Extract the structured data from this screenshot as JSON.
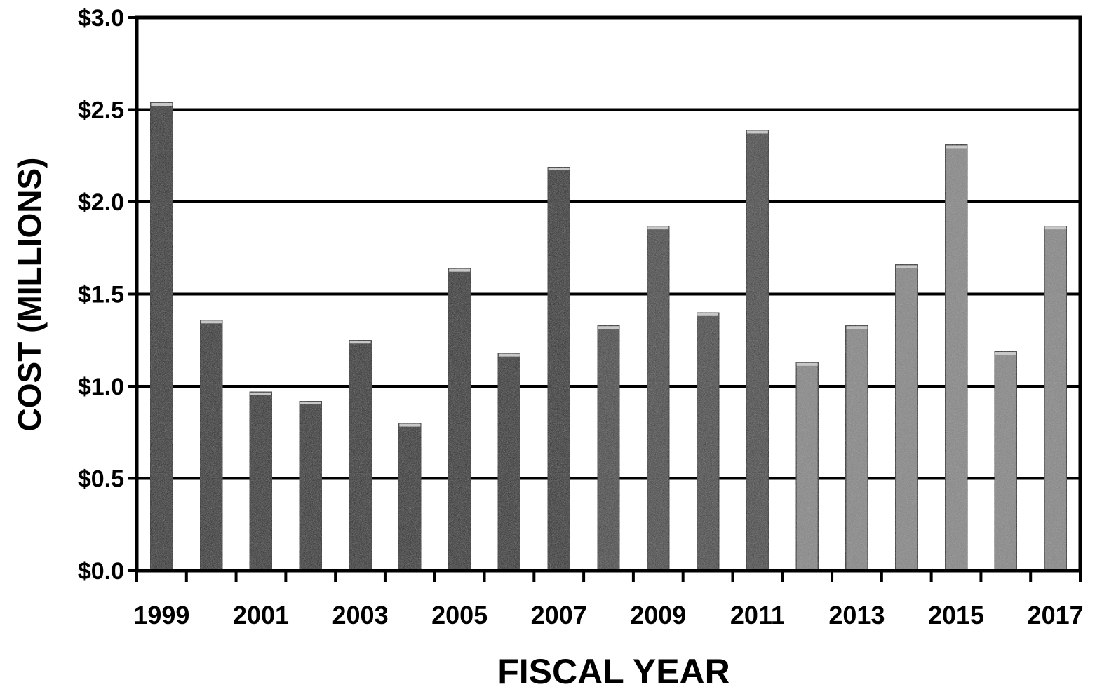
{
  "chart_data": {
    "type": "bar",
    "title": "",
    "xlabel": "FISCAL YEAR",
    "ylabel": "COST (MILLIONS)",
    "ylim": [
      0,
      3.0
    ],
    "y_ticks": [
      "$0.0",
      "$0.5",
      "$1.0",
      "$1.5",
      "$2.0",
      "$2.5",
      "$3.0"
    ],
    "y_tick_values": [
      0,
      0.5,
      1.0,
      1.5,
      2.0,
      2.5,
      3.0
    ],
    "categories": [
      "1999",
      "2000",
      "2001",
      "2002",
      "2003",
      "2004",
      "2005",
      "2006",
      "2007",
      "2008",
      "2009",
      "2010",
      "2011",
      "2012",
      "2013",
      "2014",
      "2015",
      "2016",
      "2017"
    ],
    "x_tick_labels": [
      "1999",
      "",
      "2001",
      "",
      "2003",
      "",
      "2005",
      "",
      "2007",
      "",
      "2009",
      "",
      "2011",
      "",
      "2013",
      "",
      "2015",
      "",
      "2017"
    ],
    "values": [
      2.54,
      1.36,
      0.97,
      0.92,
      1.25,
      0.8,
      1.64,
      1.18,
      2.19,
      1.33,
      1.87,
      1.4,
      2.39,
      1.13,
      1.33,
      1.66,
      2.31,
      1.19,
      1.87
    ],
    "grid": true,
    "legend": "none",
    "colors": {
      "bar_dark": "#1a1a1a",
      "bar_mid": "#3a3a3a",
      "bar_light": "#808080",
      "bar_cap": "#c8c8c8",
      "grid": "#000000"
    }
  }
}
